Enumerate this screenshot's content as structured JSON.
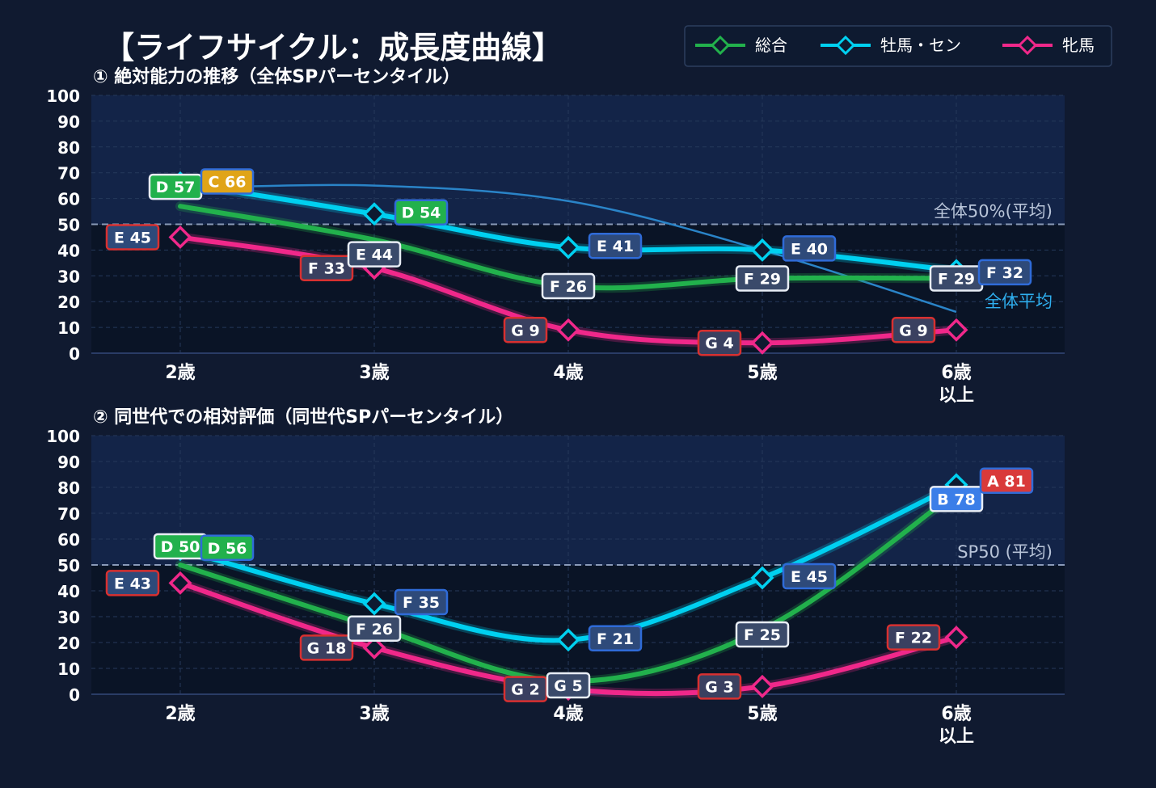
{
  "title": "【ライフサイクル：成長度曲線】",
  "legend": [
    {
      "label": "総合",
      "color": "#22b14c"
    },
    {
      "label": "牡馬・セン",
      "color": "#00d0f0"
    },
    {
      "label": "牝馬",
      "color": "#f0288a"
    }
  ],
  "chart_data": [
    {
      "type": "line",
      "title": "① 絶対能力の推移（全体SPパーセンタイル）",
      "categories": [
        "2歳",
        "3歳",
        "4歳",
        "5歳",
        "6歳\n以上"
      ],
      "ylim": [
        0,
        100
      ],
      "yticks": [
        0,
        10,
        20,
        30,
        40,
        50,
        60,
        70,
        80,
        90,
        100
      ],
      "grid": true,
      "reference_line": {
        "value": 50,
        "label": "全体50%(平均)"
      },
      "average_curve": {
        "label": "全体平均",
        "values": [
          64,
          65,
          59,
          40,
          16
        ]
      },
      "series": [
        {
          "name": "総合",
          "values": [
            57,
            44,
            26,
            29,
            29
          ],
          "labels": [
            "D 57",
            "E 44",
            "F 26",
            "F 29",
            "F 29"
          ]
        },
        {
          "name": "牡馬・セン",
          "values": [
            66,
            54,
            41,
            40,
            32
          ],
          "labels": [
            "C 66",
            "D 54",
            "E 41",
            "E 40",
            "F 32"
          ]
        },
        {
          "name": "牝馬",
          "values": [
            45,
            33,
            9,
            4,
            9
          ],
          "labels": [
            "E 45",
            "F 33",
            "G 9",
            "G 4",
            "G 9"
          ]
        }
      ]
    },
    {
      "type": "line",
      "title": "② 同世代での相対評価（同世代SPパーセンタイル）",
      "categories": [
        "2歳",
        "3歳",
        "4歳",
        "5歳",
        "6歳\n以上"
      ],
      "ylim": [
        0,
        100
      ],
      "yticks": [
        0,
        10,
        20,
        30,
        40,
        50,
        60,
        70,
        80,
        90,
        100
      ],
      "grid": true,
      "reference_line": {
        "value": 50,
        "label": "SP50 (平均)"
      },
      "series": [
        {
          "name": "総合",
          "values": [
            50,
            26,
            5,
            25,
            78
          ],
          "labels": [
            "D 50",
            "F 26",
            "G 5",
            "F 25",
            "B 78"
          ]
        },
        {
          "name": "牡馬・セン",
          "values": [
            56,
            35,
            21,
            45,
            81
          ],
          "labels": [
            "D 56",
            "F 35",
            "F 21",
            "E 45",
            "A 81"
          ]
        },
        {
          "name": "牝馬",
          "values": [
            43,
            18,
            2,
            3,
            22
          ],
          "labels": [
            "E 43",
            "G 18",
            "G 2",
            "G 3",
            "F 22"
          ]
        }
      ]
    }
  ]
}
